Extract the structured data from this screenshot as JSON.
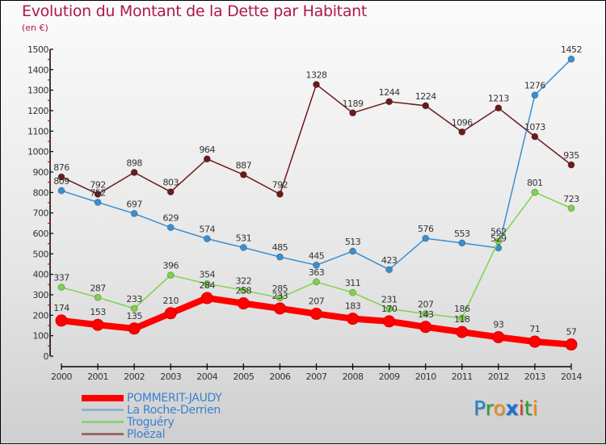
{
  "chart_data": {
    "type": "line",
    "title": "Evolution du Montant de la Dette par Habitant",
    "subtitle": "(en €)",
    "xlabel": "",
    "ylabel": "",
    "ylim": [
      0,
      1500
    ],
    "yticks": [
      0,
      100,
      200,
      300,
      400,
      500,
      600,
      700,
      800,
      900,
      1000,
      1100,
      1200,
      1300,
      1400,
      1500
    ],
    "x": [
      "2000",
      "2001",
      "2002",
      "2003",
      "2004",
      "2005",
      "2006",
      "2007",
      "2008",
      "2009",
      "2010",
      "2011",
      "2012",
      "2013",
      "2014"
    ],
    "legend_position": "bottom-left",
    "series": [
      {
        "name": "Ploëzal",
        "color": "#6b1a1a",
        "values": [
          876,
          792,
          898,
          803,
          964,
          887,
          792,
          1328,
          1189,
          1244,
          1224,
          1096,
          1213,
          1073,
          935
        ]
      },
      {
        "name": "La Roche-Derrien",
        "color": "#3a8fd0",
        "values": [
          809,
          752,
          697,
          629,
          574,
          531,
          485,
          445,
          513,
          423,
          576,
          553,
          529,
          1276,
          1452
        ]
      },
      {
        "name": "Troguéry",
        "color": "#7fd24a",
        "values": [
          337,
          287,
          233,
          396,
          354,
          322,
          285,
          363,
          311,
          231,
          207,
          186,
          562,
          801,
          723
        ]
      },
      {
        "name": "POMMERIT-JAUDY",
        "color": "#ff0000",
        "values": [
          174,
          153,
          135,
          210,
          284,
          258,
          233,
          207,
          183,
          170,
          143,
          118,
          93,
          71,
          57
        ]
      }
    ]
  },
  "legend": [
    {
      "label": "POMMERIT-JAUDY",
      "color": "#ff0000",
      "text_color": "#3a7fd0"
    },
    {
      "label": "La Roche-Derrien",
      "color": "#8fb3cc",
      "text_color": "#3a7fd0"
    },
    {
      "label": "Troguéry",
      "color": "#8fcf7a",
      "text_color": "#3a7fd0"
    },
    {
      "label": "Ploëzal",
      "color": "#9a6a6a",
      "text_color": "#3a7fd0"
    }
  ],
  "logo": {
    "letters": [
      "P",
      "r",
      "o",
      "x",
      "i",
      "t",
      "i"
    ],
    "colors": [
      "#2a7fd0",
      "#2aa02a",
      "#f08a10",
      "#1a6fd0",
      "#e03020",
      "#2aa02a",
      "#f08a10"
    ]
  }
}
